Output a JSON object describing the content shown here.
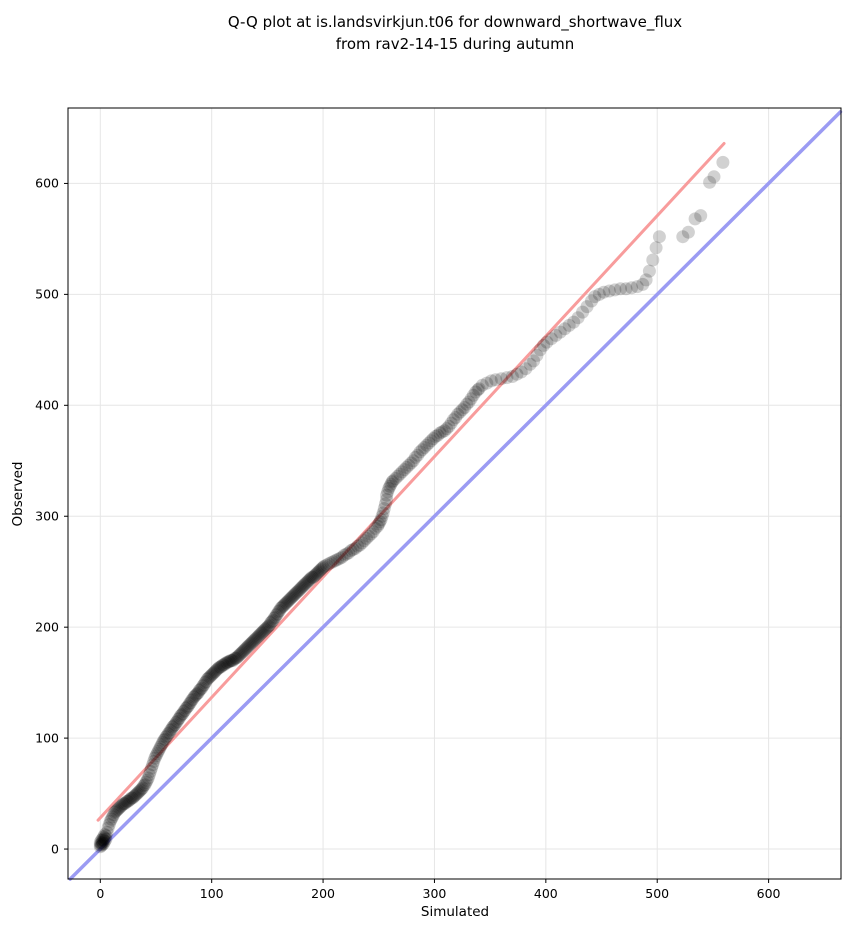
{
  "title": {
    "line1": "Q-Q plot at is.landsvirkjun.t06 for downward_shortwave_flux",
    "line2": "from rav2-14-15 during autumn"
  },
  "chart_data": {
    "type": "scatter",
    "title": "Q-Q plot at is.landsvirkjun.t06 for downward_shortwave_flux from rav2-14-15 during autumn",
    "xlabel": "Simulated",
    "ylabel": "Observed",
    "xlim": [
      -29,
      665
    ],
    "ylim": [
      -27,
      668
    ],
    "xticks": [
      0,
      100,
      200,
      300,
      400,
      500,
      600
    ],
    "yticks": [
      0,
      100,
      200,
      300,
      400,
      500,
      600
    ],
    "grid": true,
    "grid_color": "#e6e6e6",
    "spine_color": "#000000",
    "identity_line": {
      "name": "one-to-one-line",
      "color": "#9b9bf3",
      "width": 3.5,
      "from": [
        -27,
        -27
      ],
      "to": [
        664.5,
        664.5
      ]
    },
    "fit_line": {
      "name": "qq-fit-line",
      "color": "#f89c9c",
      "width": 3,
      "from": [
        -2,
        26
      ],
      "to": [
        560,
        636
      ]
    },
    "points_style": {
      "color": "#000000",
      "alpha": 0.18,
      "radius_px": 6.5
    },
    "points": [
      [
        0,
        2
      ],
      [
        0,
        4
      ],
      [
        0,
        6
      ],
      [
        1,
        3
      ],
      [
        1,
        5
      ],
      [
        1,
        8
      ],
      [
        2,
        4
      ],
      [
        2,
        6
      ],
      [
        2,
        9
      ],
      [
        3,
        5
      ],
      [
        3,
        8
      ],
      [
        3,
        11
      ],
      [
        4,
        7
      ],
      [
        4,
        10
      ],
      [
        4,
        13
      ],
      [
        5,
        9
      ],
      [
        5,
        12
      ],
      [
        6,
        15
      ],
      [
        7,
        19
      ],
      [
        8,
        22
      ],
      [
        9,
        25
      ],
      [
        10,
        27
      ],
      [
        11,
        29
      ],
      [
        12,
        31
      ],
      [
        13,
        33
      ],
      [
        14,
        34
      ],
      [
        15,
        35
      ],
      [
        16,
        36
      ],
      [
        17,
        37
      ],
      [
        18,
        38
      ],
      [
        19,
        39
      ],
      [
        20,
        40
      ],
      [
        21,
        41
      ],
      [
        22,
        41
      ],
      [
        23,
        42
      ],
      [
        24,
        43
      ],
      [
        25,
        43
      ],
      [
        26,
        44
      ],
      [
        27,
        45
      ],
      [
        28,
        46
      ],
      [
        29,
        46
      ],
      [
        30,
        47
      ],
      [
        31,
        48
      ],
      [
        32,
        49
      ],
      [
        33,
        50
      ],
      [
        34,
        51
      ],
      [
        35,
        52
      ],
      [
        36,
        53
      ],
      [
        37,
        54
      ],
      [
        38,
        55
      ],
      [
        39,
        57
      ],
      [
        40,
        58
      ],
      [
        41,
        60
      ],
      [
        42,
        62
      ],
      [
        43,
        64
      ],
      [
        44,
        67
      ],
      [
        45,
        70
      ],
      [
        46,
        73
      ],
      [
        47,
        76
      ],
      [
        48,
        79
      ],
      [
        49,
        82
      ],
      [
        50,
        84
      ],
      [
        51,
        86
      ],
      [
        52,
        88
      ],
      [
        53,
        90
      ],
      [
        54,
        92
      ],
      [
        55,
        94
      ],
      [
        56,
        96
      ],
      [
        57,
        98
      ],
      [
        58,
        99
      ],
      [
        59,
        101
      ],
      [
        60,
        102
      ],
      [
        61,
        104
      ],
      [
        62,
        105
      ],
      [
        63,
        107
      ],
      [
        64,
        108
      ],
      [
        65,
        110
      ],
      [
        66,
        111
      ],
      [
        67,
        112
      ],
      [
        68,
        114
      ],
      [
        69,
        115
      ],
      [
        70,
        117
      ],
      [
        71,
        118
      ],
      [
        72,
        120
      ],
      [
        73,
        121
      ],
      [
        74,
        122
      ],
      [
        75,
        124
      ],
      [
        76,
        125
      ],
      [
        77,
        127
      ],
      [
        78,
        128
      ],
      [
        79,
        129
      ],
      [
        80,
        131
      ],
      [
        81,
        132
      ],
      [
        82,
        134
      ],
      [
        83,
        135
      ],
      [
        84,
        137
      ],
      [
        85,
        138
      ],
      [
        86,
        139
      ],
      [
        87,
        140
      ],
      [
        88,
        141
      ],
      [
        89,
        143
      ],
      [
        90,
        144
      ],
      [
        91,
        145
      ],
      [
        92,
        147
      ],
      [
        93,
        148
      ],
      [
        94,
        150
      ],
      [
        95,
        151
      ],
      [
        96,
        153
      ],
      [
        97,
        154
      ],
      [
        98,
        155
      ],
      [
        99,
        156
      ],
      [
        100,
        157
      ],
      [
        101,
        158
      ],
      [
        102,
        159
      ],
      [
        103,
        160
      ],
      [
        104,
        161
      ],
      [
        105,
        162
      ],
      [
        106,
        163
      ],
      [
        107,
        164
      ],
      [
        108,
        164
      ],
      [
        109,
        165
      ],
      [
        110,
        166
      ],
      [
        111,
        166
      ],
      [
        112,
        167
      ],
      [
        113,
        168
      ],
      [
        114,
        168
      ],
      [
        115,
        169
      ],
      [
        116,
        169
      ],
      [
        117,
        170
      ],
      [
        118,
        170
      ],
      [
        119,
        170
      ],
      [
        120,
        171
      ],
      [
        121,
        172
      ],
      [
        122,
        172
      ],
      [
        123,
        173
      ],
      [
        124,
        174
      ],
      [
        125,
        175
      ],
      [
        126,
        176
      ],
      [
        127,
        177
      ],
      [
        128,
        178
      ],
      [
        129,
        179
      ],
      [
        130,
        180
      ],
      [
        131,
        181
      ],
      [
        132,
        182
      ],
      [
        133,
        183
      ],
      [
        134,
        184
      ],
      [
        135,
        185
      ],
      [
        136,
        186
      ],
      [
        137,
        187
      ],
      [
        138,
        188
      ],
      [
        139,
        189
      ],
      [
        140,
        190
      ],
      [
        141,
        191
      ],
      [
        142,
        192
      ],
      [
        143,
        193
      ],
      [
        144,
        194
      ],
      [
        145,
        195
      ],
      [
        146,
        196
      ],
      [
        147,
        197
      ],
      [
        148,
        198
      ],
      [
        149,
        199
      ],
      [
        150,
        200
      ],
      [
        151,
        201
      ],
      [
        152,
        202
      ],
      [
        153,
        204
      ],
      [
        154,
        205
      ],
      [
        155,
        206
      ],
      [
        156,
        208
      ],
      [
        157,
        209
      ],
      [
        158,
        211
      ],
      [
        159,
        212
      ],
      [
        160,
        214
      ],
      [
        161,
        215
      ],
      [
        162,
        217
      ],
      [
        163,
        218
      ],
      [
        164,
        219
      ],
      [
        165,
        220
      ],
      [
        166,
        221
      ],
      [
        167,
        222
      ],
      [
        168,
        223
      ],
      [
        169,
        224
      ],
      [
        170,
        225
      ],
      [
        171,
        226
      ],
      [
        172,
        227
      ],
      [
        173,
        228
      ],
      [
        174,
        229
      ],
      [
        175,
        230
      ],
      [
        176,
        231
      ],
      [
        177,
        232
      ],
      [
        178,
        233
      ],
      [
        179,
        234
      ],
      [
        180,
        235
      ],
      [
        181,
        236
      ],
      [
        182,
        237
      ],
      [
        183,
        238
      ],
      [
        184,
        239
      ],
      [
        185,
        240
      ],
      [
        186,
        241
      ],
      [
        187,
        242
      ],
      [
        188,
        243
      ],
      [
        189,
        244
      ],
      [
        190,
        245
      ],
      [
        191,
        245
      ],
      [
        192,
        246
      ],
      [
        193,
        247
      ],
      [
        194,
        248
      ],
      [
        195,
        249
      ],
      [
        196,
        250
      ],
      [
        197,
        251
      ],
      [
        198,
        252
      ],
      [
        199,
        253
      ],
      [
        200,
        254
      ],
      [
        201,
        255
      ],
      [
        203,
        256
      ],
      [
        205,
        257
      ],
      [
        207,
        258
      ],
      [
        209,
        259
      ],
      [
        211,
        260
      ],
      [
        213,
        261
      ],
      [
        215,
        262
      ],
      [
        217,
        263
      ],
      [
        219,
        265
      ],
      [
        221,
        266
      ],
      [
        223,
        267
      ],
      [
        225,
        269
      ],
      [
        227,
        270
      ],
      [
        229,
        271
      ],
      [
        231,
        273
      ],
      [
        233,
        274
      ],
      [
        235,
        276
      ],
      [
        237,
        278
      ],
      [
        239,
        280
      ],
      [
        241,
        282
      ],
      [
        243,
        284
      ],
      [
        245,
        286
      ],
      [
        247,
        289
      ],
      [
        249,
        291
      ],
      [
        250,
        293
      ],
      [
        251,
        295
      ],
      [
        252,
        297
      ],
      [
        253,
        300
      ],
      [
        254,
        303
      ],
      [
        255,
        307
      ],
      [
        256,
        311
      ],
      [
        257,
        315
      ],
      [
        257,
        319
      ],
      [
        258,
        322
      ],
      [
        259,
        325
      ],
      [
        260,
        327
      ],
      [
        261,
        329
      ],
      [
        262,
        331
      ],
      [
        263,
        332
      ],
      [
        265,
        334
      ],
      [
        267,
        336
      ],
      [
        269,
        338
      ],
      [
        271,
        340
      ],
      [
        273,
        342
      ],
      [
        275,
        344
      ],
      [
        277,
        346
      ],
      [
        279,
        348
      ],
      [
        281,
        350
      ],
      [
        283,
        353
      ],
      [
        285,
        355
      ],
      [
        287,
        358
      ],
      [
        289,
        360
      ],
      [
        291,
        362
      ],
      [
        293,
        364
      ],
      [
        295,
        366
      ],
      [
        297,
        368
      ],
      [
        299,
        370
      ],
      [
        301,
        372
      ],
      [
        303,
        373
      ],
      [
        305,
        375
      ],
      [
        307,
        376
      ],
      [
        309,
        377
      ],
      [
        311,
        379
      ],
      [
        313,
        381
      ],
      [
        315,
        384
      ],
      [
        317,
        387
      ],
      [
        319,
        389
      ],
      [
        321,
        392
      ],
      [
        323,
        394
      ],
      [
        325,
        396
      ],
      [
        327,
        398
      ],
      [
        329,
        401
      ],
      [
        331,
        403
      ],
      [
        333,
        406
      ],
      [
        335,
        409
      ],
      [
        337,
        412
      ],
      [
        339,
        414
      ],
      [
        340,
        415
      ],
      [
        343,
        418
      ],
      [
        347,
        420
      ],
      [
        351,
        422
      ],
      [
        355,
        423
      ],
      [
        360,
        424
      ],
      [
        365,
        425
      ],
      [
        370,
        426
      ],
      [
        374,
        428
      ],
      [
        378,
        430
      ],
      [
        382,
        433
      ],
      [
        386,
        437
      ],
      [
        389,
        440
      ],
      [
        392,
        445
      ],
      [
        395,
        450
      ],
      [
        398,
        454
      ],
      [
        401,
        457
      ],
      [
        405,
        460
      ],
      [
        409,
        463
      ],
      [
        413,
        466
      ],
      [
        417,
        469
      ],
      [
        421,
        472
      ],
      [
        425,
        475
      ],
      [
        429,
        479
      ],
      [
        433,
        484
      ],
      [
        437,
        489
      ],
      [
        441,
        494
      ],
      [
        444,
        498
      ],
      [
        448,
        500
      ],
      [
        452,
        502
      ],
      [
        457,
        503
      ],
      [
        462,
        504
      ],
      [
        467,
        505
      ],
      [
        472,
        505
      ],
      [
        477,
        506
      ],
      [
        482,
        507
      ],
      [
        487,
        509
      ],
      [
        490,
        513
      ],
      [
        493,
        521
      ],
      [
        496,
        531
      ],
      [
        499,
        542
      ],
      [
        502,
        552
      ],
      [
        523,
        552
      ],
      [
        528,
        556
      ],
      [
        534,
        568
      ],
      [
        539,
        571
      ],
      [
        547,
        601
      ],
      [
        551,
        606
      ],
      [
        559,
        619
      ]
    ]
  }
}
